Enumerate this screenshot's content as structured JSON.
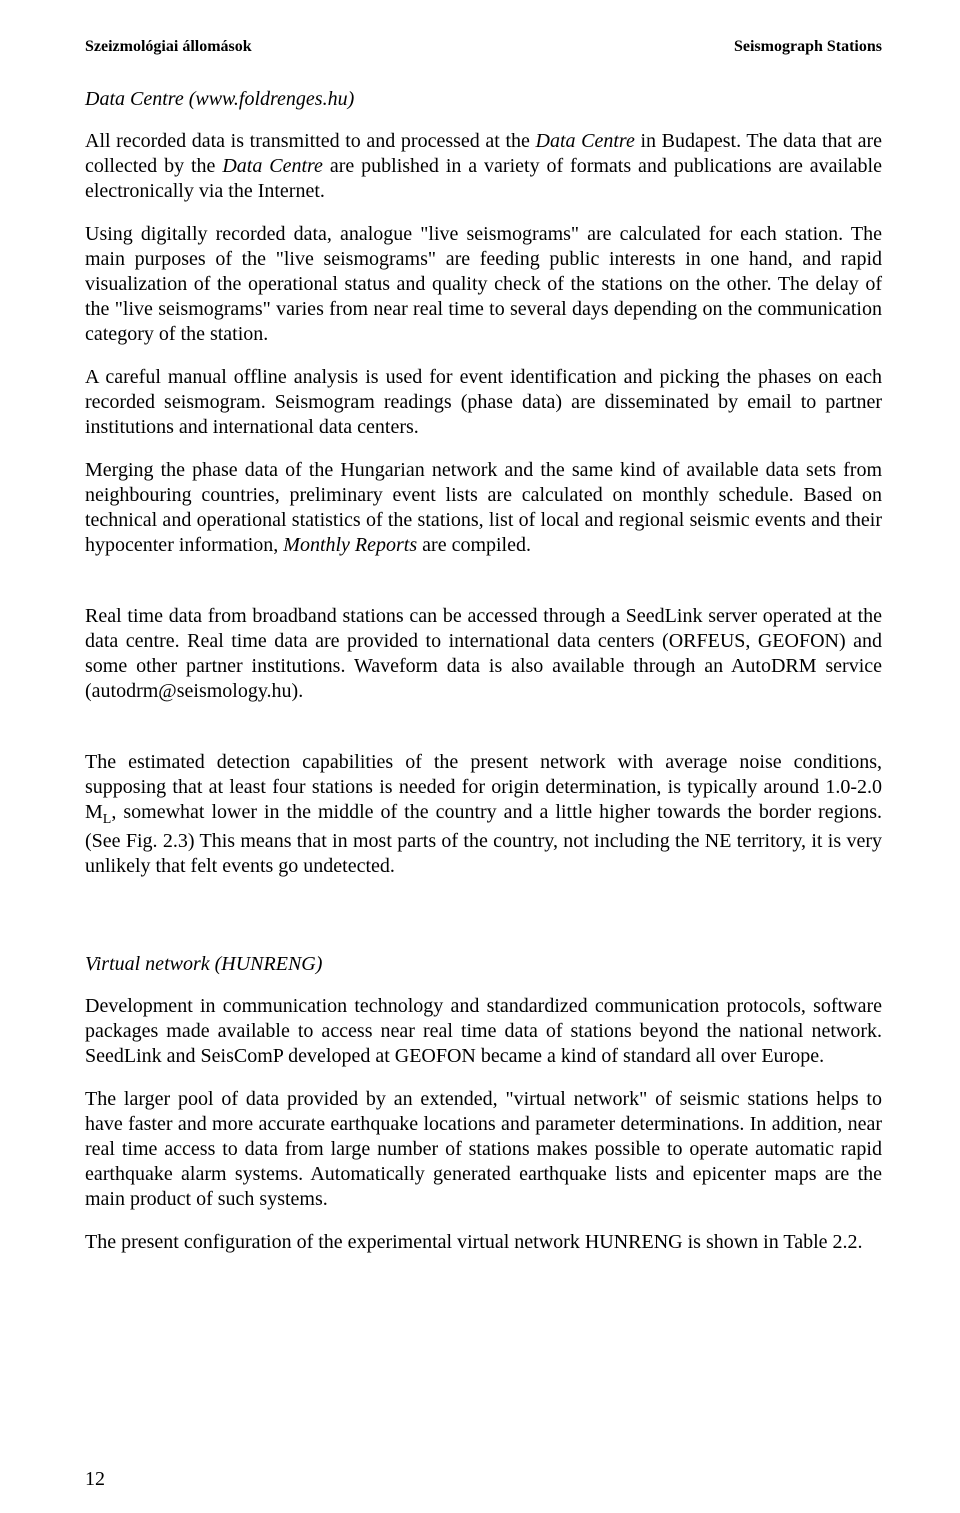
{
  "header": {
    "left": "Szeizmológiai állomások",
    "right": "Seismograph Stations"
  },
  "section1": {
    "title": "Data Centre (www.foldrenges.hu)",
    "para1_pre": "All recorded data is transmitted to and processed at the ",
    "para1_italic": "Data Centre",
    "para1_post": " in Budapest. The data that are collected by the ",
    "para1_italic2": "Data Centre",
    "para1_post2": " are published in a variety of formats and publications are available electronically via the Internet.",
    "para2": "Using digitally recorded data, analogue \"live seismograms\" are calculated for each station. The main purposes of the \"live seismograms\" are feeding public interests in one hand, and rapid visualization of the operational status and quality check of the stations on the other. The delay of the \"live seismograms\" varies from near real time to several days depending on the communication category of the station.",
    "para3": "A careful manual offline analysis is used for event identification and picking the phases on each recorded seismogram. Seismogram readings (phase data) are disseminated by email to partner institutions and international data centers.",
    "para4_pre": "Merging the phase data of the Hungarian network and the same kind of available data sets from neighbouring countries, preliminary event lists are calculated on monthly schedule. Based on technical and operational statistics of the stations, list of local and regional seismic events and their hypocenter information, ",
    "para4_italic": "Monthly Reports",
    "para4_post": " are compiled.",
    "para5": "Real time data from broadband stations can be accessed through a SeedLink server operated at the data centre. Real time data are provided to international data centers (ORFEUS, GEOFON) and some other partner institutions. Waveform data is also available through an AutoDRM service (autodrm@seismology.hu).",
    "para6_pre": "The estimated detection capabilities of the present network with average noise conditions, supposing that at least four stations is needed for origin determination, is typically around 1.0-2.0 M",
    "para6_sub": "L",
    "para6_post": ", somewhat lower in the middle of the country and a little higher towards the border regions. (See Fig. 2.3) This means that in most parts of the country, not including the NE territory, it is very unlikely that felt events go undetected."
  },
  "section2": {
    "title_pre": "Virtual network (",
    "title_sc": "HUN",
    "title_post": "RENG)",
    "para1": "Development in communication technology and standardized communication protocols, software packages made available to access near real time data of stations beyond the national network. SeedLink and SeisComP developed at GEOFON became a kind of standard all over Europe.",
    "para2": "The larger pool of data provided by an extended, \"virtual network\" of seismic stations helps to have faster and more accurate earthquake locations and parameter determinations. In addition, near real time access to data from large number of stations makes possible to operate automatic rapid earthquake alarm systems. Automatically generated earthquake lists and epicenter maps are the main product of such systems.",
    "para3_pre": "The present configuration of the experimental virtual network ",
    "para3_sc": "HUN",
    "para3_post": "RENG is shown in Table 2.2."
  },
  "page_number": "12"
}
